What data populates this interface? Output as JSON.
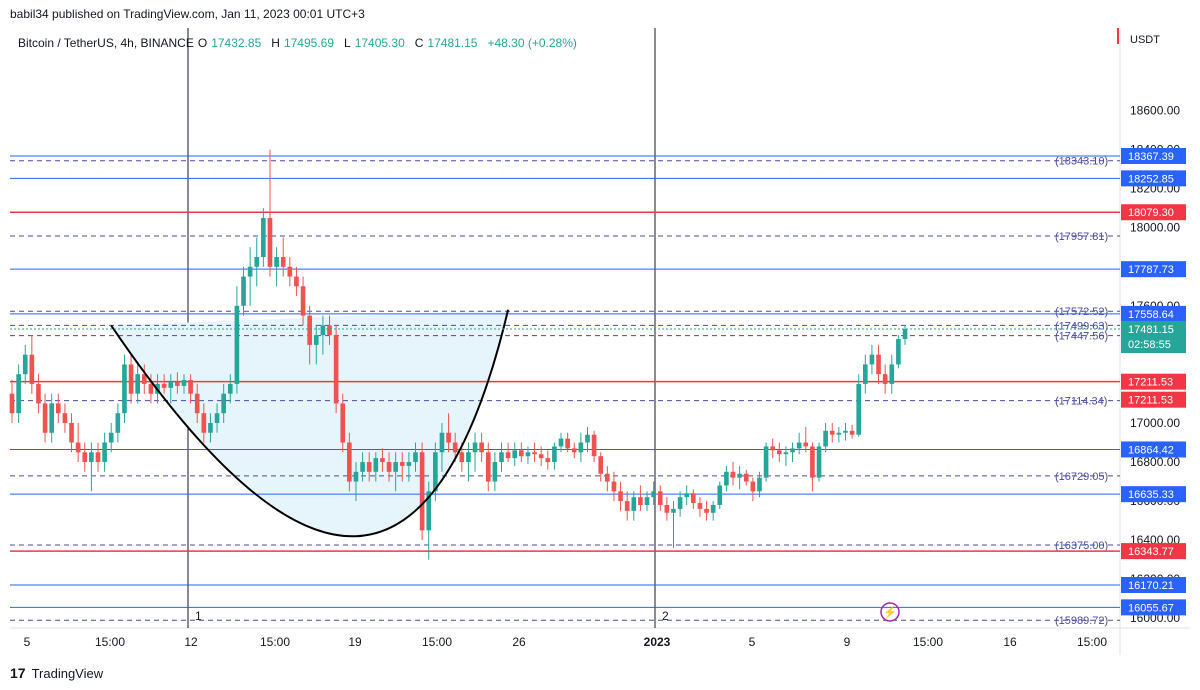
{
  "header": {
    "published": "babil34 published on TradingView.com, Jan 11, 2023 00:01 UTC+3"
  },
  "symbol": {
    "name": "Bitcoin / TetherUS, 4h, BINANCE",
    "o_label": "O",
    "o": "17432.85",
    "h_label": "H",
    "h": "17495.69",
    "l_label": "L",
    "l": "17405.30",
    "c_label": "C",
    "c": "17481.15",
    "change": "+48.30 (+0.28%)"
  },
  "currency": "USDT",
  "footer": {
    "brand": "TradingView"
  },
  "colors": {
    "up": "#26a69a",
    "down": "#ef5350",
    "blue_line": "#2962ff",
    "red_line": "#f23645",
    "dashed": "#4a4aa0",
    "fill": "#e6f5fb"
  },
  "chart_data": {
    "type": "candlestick",
    "ylim": [
      15950,
      18900
    ],
    "y_ticks": [
      18600,
      18400,
      18200,
      18000,
      17600,
      17000,
      16800,
      16600,
      16400,
      16200,
      16000
    ],
    "y_tick_labels": [
      "18600.00",
      "18400.00",
      "18200.00",
      "18000.00",
      "17600.00",
      "17000.00",
      "16800.00",
      "16600.00",
      "16400.00",
      "16200.00",
      "16000.00"
    ],
    "x_tick_labels": [
      "5",
      "15:00",
      "12",
      "15:00",
      "19",
      "15:00",
      "26",
      "2023",
      "5",
      "9",
      "15:00",
      "16",
      "15:00"
    ],
    "session_labels": [
      "1",
      "2"
    ],
    "horizontal_levels": [
      {
        "value": 18367.39,
        "label": "18367.39",
        "style": "blue"
      },
      {
        "value": 18343.1,
        "label": "(18343.10)",
        "style": "dashed"
      },
      {
        "value": 18252.85,
        "label": "18252.85",
        "style": "blue"
      },
      {
        "value": 18079.3,
        "label": "18079.30",
        "style": "red"
      },
      {
        "value": 17957.81,
        "label": "(17957.81)",
        "style": "dashed"
      },
      {
        "value": 17787.73,
        "label": "17787.73",
        "style": "blue"
      },
      {
        "value": 17572.52,
        "label": "(17572.52)",
        "style": "dashed"
      },
      {
        "value": 17558.64,
        "label": "17558.64",
        "style": "blue"
      },
      {
        "value": 17499.63,
        "label": "(17499.63)",
        "style": "dashed"
      },
      {
        "value": 17447.56,
        "label": "(17447.56)",
        "style": "dashed"
      },
      {
        "value": 17211.53,
        "label": "17211.53",
        "style": "red"
      },
      {
        "value": 17211.53,
        "label": "17211.53",
        "style": "red-tag"
      },
      {
        "value": 17114.34,
        "label": "(17114.34)",
        "style": "dashed"
      },
      {
        "value": 16864.42,
        "label": "16864.42",
        "style": "blue"
      },
      {
        "value": 16729.05,
        "label": "(16729.05)",
        "style": "dashed"
      },
      {
        "value": 16635.33,
        "label": "16635.33",
        "style": "blue"
      },
      {
        "value": 16375.0,
        "label": "(16375.00)",
        "style": "dashed"
      },
      {
        "value": 16343.77,
        "label": "16343.77",
        "style": "red"
      },
      {
        "value": 16170.21,
        "label": "16170.21",
        "style": "blue"
      },
      {
        "value": 16055.67,
        "label": "16055.67",
        "style": "blue"
      },
      {
        "value": 15989.72,
        "label": "(15989.72)",
        "style": "dashed"
      }
    ],
    "current_price": {
      "value": 17481.15,
      "label": "17481.15",
      "countdown": "02:58:55"
    },
    "candles": [
      [
        17150,
        17220,
        17000,
        17050
      ],
      [
        17050,
        17300,
        17000,
        17250
      ],
      [
        17250,
        17400,
        17200,
        17350
      ],
      [
        17350,
        17450,
        17150,
        17200
      ],
      [
        17200,
        17250,
        17050,
        17100
      ],
      [
        17100,
        17150,
        16900,
        16950
      ],
      [
        16950,
        17150,
        16900,
        17100
      ],
      [
        17100,
        17150,
        17000,
        17050
      ],
      [
        17050,
        17100,
        16950,
        17000
      ],
      [
        17000,
        17050,
        16850,
        16900
      ],
      [
        16900,
        17000,
        16800,
        16850
      ],
      [
        16850,
        16900,
        16750,
        16800
      ],
      [
        16800,
        16900,
        16650,
        16850
      ],
      [
        16850,
        16900,
        16750,
        16800
      ],
      [
        16800,
        16950,
        16750,
        16900
      ],
      [
        16900,
        17000,
        16850,
        16950
      ],
      [
        16950,
        17100,
        16900,
        17050
      ],
      [
        17050,
        17350,
        17000,
        17300
      ],
      [
        17300,
        17350,
        17100,
        17150
      ],
      [
        17150,
        17300,
        17100,
        17250
      ],
      [
        17250,
        17300,
        17150,
        17200
      ],
      [
        17200,
        17250,
        17100,
        17150
      ],
      [
        17150,
        17250,
        17100,
        17200
      ],
      [
        17200,
        17250,
        17150,
        17180
      ],
      [
        17180,
        17250,
        17100,
        17210
      ],
      [
        17210,
        17260,
        17150,
        17190
      ],
      [
        17190,
        17250,
        17150,
        17220
      ],
      [
        17220,
        17250,
        17100,
        17150
      ],
      [
        17150,
        17200,
        17000,
        17050
      ],
      [
        17050,
        17100,
        16900,
        16950
      ],
      [
        16950,
        17050,
        16900,
        17000
      ],
      [
        17000,
        17100,
        16950,
        17050
      ],
      [
        17050,
        17200,
        17000,
        17150
      ],
      [
        17150,
        17250,
        17100,
        17200
      ],
      [
        17200,
        17700,
        17150,
        17600
      ],
      [
        17600,
        17800,
        17550,
        17750
      ],
      [
        17750,
        17900,
        17600,
        17800
      ],
      [
        17800,
        17950,
        17700,
        17850
      ],
      [
        17850,
        18100,
        17800,
        18050
      ],
      [
        18050,
        18400,
        17750,
        17800
      ],
      [
        17800,
        17900,
        17700,
        17850
      ],
      [
        17850,
        17950,
        17750,
        17800
      ],
      [
        17800,
        17850,
        17700,
        17750
      ],
      [
        17750,
        17800,
        17650,
        17700
      ],
      [
        17700,
        17750,
        17500,
        17550
      ],
      [
        17550,
        17600,
        17300,
        17400
      ],
      [
        17400,
        17500,
        17300,
        17450
      ],
      [
        17450,
        17550,
        17350,
        17500
      ],
      [
        17500,
        17550,
        17400,
        17450
      ],
      [
        17450,
        17500,
        17050,
        17100
      ],
      [
        17100,
        17150,
        16850,
        16900
      ],
      [
        16900,
        16950,
        16650,
        16700
      ],
      [
        16700,
        16800,
        16600,
        16750
      ],
      [
        16750,
        16850,
        16700,
        16800
      ],
      [
        16800,
        16850,
        16700,
        16750
      ],
      [
        16750,
        16850,
        16700,
        16820
      ],
      [
        16820,
        16870,
        16750,
        16800
      ],
      [
        16800,
        16850,
        16700,
        16750
      ],
      [
        16750,
        16850,
        16650,
        16800
      ],
      [
        16800,
        16850,
        16700,
        16780
      ],
      [
        16780,
        16850,
        16700,
        16800
      ],
      [
        16800,
        16900,
        16750,
        16850
      ],
      [
        16850,
        16900,
        16400,
        16450
      ],
      [
        16450,
        16700,
        16300,
        16650
      ],
      [
        16650,
        16900,
        16600,
        16850
      ],
      [
        16850,
        17000,
        16750,
        16950
      ],
      [
        16950,
        17050,
        16850,
        16900
      ],
      [
        16900,
        16950,
        16800,
        16850
      ],
      [
        16850,
        16900,
        16750,
        16800
      ],
      [
        16800,
        16900,
        16700,
        16850
      ],
      [
        16850,
        16950,
        16750,
        16900
      ],
      [
        16900,
        16950,
        16800,
        16850
      ],
      [
        16850,
        16900,
        16650,
        16700
      ],
      [
        16700,
        16850,
        16650,
        16800
      ],
      [
        16800,
        16900,
        16750,
        16850
      ],
      [
        16850,
        16900,
        16800,
        16820
      ],
      [
        16820,
        16900,
        16780,
        16860
      ],
      [
        16860,
        16900,
        16800,
        16830
      ],
      [
        16830,
        16880,
        16790,
        16850
      ],
      [
        16850,
        16900,
        16800,
        16840
      ],
      [
        16840,
        16880,
        16780,
        16820
      ],
      [
        16820,
        16860,
        16760,
        16800
      ],
      [
        16800,
        16900,
        16760,
        16880
      ],
      [
        16880,
        16950,
        16850,
        16920
      ],
      [
        16920,
        16950,
        16850,
        16870
      ],
      [
        16870,
        16900,
        16820,
        16850
      ],
      [
        16850,
        16950,
        16800,
        16900
      ],
      [
        16900,
        16980,
        16850,
        16940
      ],
      [
        16940,
        16960,
        16800,
        16830
      ],
      [
        16830,
        16850,
        16700,
        16740
      ],
      [
        16740,
        16780,
        16650,
        16700
      ],
      [
        16700,
        16750,
        16600,
        16650
      ],
      [
        16650,
        16700,
        16550,
        16600
      ],
      [
        16600,
        16650,
        16500,
        16550
      ],
      [
        16550,
        16650,
        16500,
        16620
      ],
      [
        16620,
        16680,
        16550,
        16580
      ],
      [
        16580,
        16650,
        16550,
        16620
      ],
      [
        16620,
        16700,
        16580,
        16650
      ],
      [
        16650,
        16680,
        16550,
        16580
      ],
      [
        16580,
        16620,
        16500,
        16540
      ],
      [
        16540,
        16600,
        16360,
        16560
      ],
      [
        16560,
        16650,
        16520,
        16620
      ],
      [
        16620,
        16680,
        16580,
        16640
      ],
      [
        16640,
        16660,
        16560,
        16590
      ],
      [
        16590,
        16620,
        16520,
        16560
      ],
      [
        16560,
        16600,
        16500,
        16540
      ],
      [
        16540,
        16600,
        16500,
        16580
      ],
      [
        16580,
        16700,
        16560,
        16680
      ],
      [
        16680,
        16780,
        16650,
        16750
      ],
      [
        16750,
        16800,
        16680,
        16720
      ],
      [
        16720,
        16780,
        16660,
        16740
      ],
      [
        16740,
        16760,
        16680,
        16700
      ],
      [
        16700,
        16720,
        16600,
        16650
      ],
      [
        16650,
        16750,
        16620,
        16720
      ],
      [
        16720,
        16900,
        16700,
        16880
      ],
      [
        16880,
        16920,
        16820,
        16860
      ],
      [
        16860,
        16900,
        16800,
        16840
      ],
      [
        16840,
        16880,
        16780,
        16850
      ],
      [
        16850,
        16900,
        16800,
        16870
      ],
      [
        16870,
        16950,
        16840,
        16900
      ],
      [
        16900,
        16980,
        16850,
        16880
      ],
      [
        16880,
        16900,
        16650,
        16720
      ],
      [
        16720,
        16900,
        16700,
        16880
      ],
      [
        16880,
        17000,
        16850,
        16960
      ],
      [
        16960,
        17000,
        16900,
        16940
      ],
      [
        16940,
        16980,
        16900,
        16950
      ],
      [
        16950,
        17000,
        16910,
        16960
      ],
      [
        16960,
        16990,
        16920,
        16940
      ],
      [
        16940,
        17250,
        16930,
        17200
      ],
      [
        17200,
        17350,
        17150,
        17300
      ],
      [
        17300,
        17400,
        17250,
        17350
      ],
      [
        17350,
        17400,
        17200,
        17250
      ],
      [
        17250,
        17300,
        17150,
        17200
      ],
      [
        17200,
        17350,
        17150,
        17300
      ],
      [
        17300,
        17450,
        17280,
        17430
      ],
      [
        17430,
        17500,
        17400,
        17481
      ]
    ],
    "cup_pattern": {
      "start": [
        15,
        17499
      ],
      "bottom": [
        52,
        16420
      ],
      "end": [
        75,
        17580
      ]
    },
    "annotations": {
      "flash_icon": "lightning-icon"
    }
  }
}
